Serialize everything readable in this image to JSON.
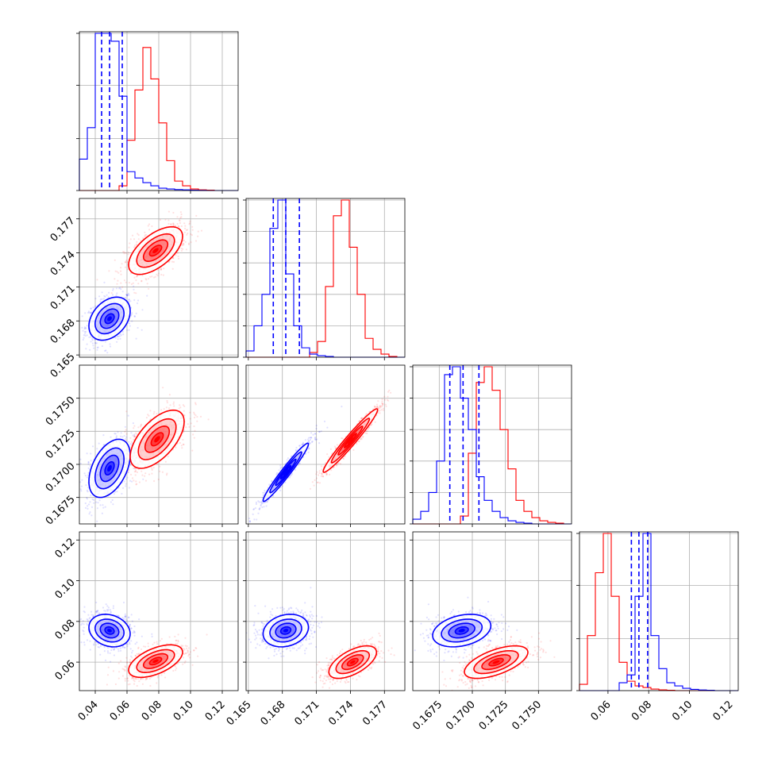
{
  "chart_data": {
    "type": "corner",
    "title": "",
    "grid": true,
    "series": [
      {
        "color": "#0000ff"
      },
      {
        "color": "#ff0000"
      }
    ],
    "parameters": [
      {
        "index": 0,
        "range": [
          0.03,
          0.13
        ],
        "ticks": [
          0.04,
          0.06,
          0.08,
          0.1,
          0.12
        ],
        "tick_labels": [
          "0.04",
          "0.06",
          "0.08",
          "0.10",
          "0.12"
        ],
        "quantiles": [
          0.044,
          0.049,
          0.057
        ],
        "hist": {
          "bin_edges": [
            0.03,
            0.035,
            0.04,
            0.045,
            0.05,
            0.055,
            0.06,
            0.065,
            0.07,
            0.075,
            0.08,
            0.085,
            0.09,
            0.095,
            0.1,
            0.105,
            0.11,
            0.115,
            0.12,
            0.125,
            0.13
          ],
          "blue": [
            0.2,
            0.4,
            1.0,
            1.0,
            0.95,
            0.6,
            0.12,
            0.08,
            0.05,
            0.03,
            0.015,
            0.01,
            0.006,
            0.004,
            0.002,
            0.001,
            0,
            0,
            0,
            0
          ],
          "red": [
            0,
            0,
            0,
            0,
            0,
            0.03,
            0.32,
            0.64,
            0.91,
            0.71,
            0.43,
            0.19,
            0.06,
            0.03,
            0.01,
            0.004,
            0.002,
            0,
            0,
            0
          ]
        },
        "unlabeled_y_ticks": [
          0.0,
          0.33,
          0.67,
          1.0
        ]
      },
      {
        "index": 1,
        "range": [
          0.1648,
          0.1788
        ],
        "ticks": [
          0.165,
          0.168,
          0.171,
          0.174,
          0.177
        ],
        "tick_labels": [
          "0.165",
          "0.168",
          "0.171",
          "0.174",
          "0.177"
        ],
        "quantiles": [
          0.1672,
          0.1683,
          0.1695
        ],
        "hist": {
          "bin_edges": [
            0.1648,
            0.1655,
            0.1662,
            0.1669,
            0.1676,
            0.1683,
            0.169,
            0.1697,
            0.1704,
            0.1711,
            0.1718,
            0.1725,
            0.1732,
            0.1739,
            0.1746,
            0.1753,
            0.176,
            0.1767,
            0.1774,
            0.1781,
            0.1788
          ],
          "blue": [
            0.04,
            0.2,
            0.4,
            0.82,
            1.0,
            0.53,
            0.2,
            0.06,
            0.02,
            0.01,
            0.005,
            0,
            0,
            0,
            0,
            0,
            0,
            0,
            0,
            0
          ],
          "red": [
            0,
            0,
            0,
            0,
            0,
            0,
            0,
            0,
            0.03,
            0.1,
            0.45,
            0.9,
            1.0,
            0.7,
            0.4,
            0.12,
            0.05,
            0.02,
            0.005,
            0
          ]
        },
        "unlabeled_y_ticks": [
          0.0,
          0.2,
          0.4,
          0.6,
          0.8,
          1.0
        ]
      },
      {
        "index": 2,
        "range": [
          0.1655,
          0.1775
        ],
        "ticks": [
          0.1675,
          0.17,
          0.1725,
          0.175
        ],
        "tick_labels": [
          "0.1675",
          "0.1700",
          "0.1725",
          "0.1750"
        ],
        "quantiles": [
          0.1683,
          0.1693,
          0.1705
        ],
        "hist": {
          "bin_edges": [
            0.1655,
            0.1661,
            0.1667,
            0.1673,
            0.1679,
            0.1685,
            0.1691,
            0.1697,
            0.1703,
            0.1709,
            0.1715,
            0.1721,
            0.1727,
            0.1733,
            0.1739,
            0.1745,
            0.1751,
            0.1757,
            0.1763,
            0.1769,
            0.1775
          ],
          "blue": [
            0.03,
            0.08,
            0.2,
            0.4,
            0.95,
            1.0,
            0.8,
            0.6,
            0.3,
            0.15,
            0.08,
            0.04,
            0.02,
            0.01,
            0.005,
            0,
            0,
            0,
            0,
            0
          ],
          "red": [
            0,
            0,
            0,
            0,
            0,
            0,
            0.05,
            0.45,
            0.9,
            1.0,
            0.85,
            0.6,
            0.35,
            0.15,
            0.08,
            0.04,
            0.02,
            0.01,
            0.005,
            0
          ]
        },
        "unlabeled_y_ticks": [
          0.0,
          0.2,
          0.4,
          0.6,
          0.8,
          1.0
        ]
      },
      {
        "index": 3,
        "range": [
          0.046,
          0.124
        ],
        "ticks": [
          0.06,
          0.08,
          0.1,
          0.12
        ],
        "tick_labels": [
          "0.06",
          "0.08",
          "0.10",
          "0.12"
        ],
        "quantiles": [
          0.0715,
          0.0752,
          0.0795
        ],
        "hist": {
          "bin_edges": [
            0.046,
            0.0499,
            0.0538,
            0.0577,
            0.0616,
            0.0655,
            0.0694,
            0.0733,
            0.0772,
            0.0811,
            0.085,
            0.0889,
            0.0928,
            0.0967,
            0.1006,
            0.1045,
            0.1084,
            0.1123,
            0.1162,
            0.1201,
            0.124
          ],
          "blue": [
            0,
            0,
            0,
            0,
            0,
            0.05,
            0.1,
            0.6,
            1.0,
            0.35,
            0.14,
            0.05,
            0.03,
            0.015,
            0.008,
            0.004,
            0.002,
            0,
            0,
            0
          ],
          "red": [
            0.04,
            0.35,
            0.75,
            1.0,
            0.6,
            0.18,
            0.06,
            0.03,
            0.02,
            0.01,
            0.005,
            0.002,
            0,
            0,
            0,
            0,
            0,
            0,
            0,
            0
          ]
        },
        "unlabeled_y_ticks": [
          0.0,
          0.33,
          0.67,
          1.0
        ]
      }
    ],
    "pairs_2d": [
      {
        "row": 1,
        "col": 0,
        "blue": {
          "mean": [
            0.049,
            0.1682
          ],
          "sd": [
            0.0065,
            0.00095
          ],
          "rho": 0.35
        },
        "red": {
          "mean": [
            0.078,
            0.1742
          ],
          "sd": [
            0.0085,
            0.00105
          ],
          "rho": 0.6
        }
      },
      {
        "row": 2,
        "col": 0,
        "blue": {
          "mean": [
            0.049,
            0.1697
          ],
          "sd": [
            0.0065,
            0.0011
          ],
          "rho": 0.45
        },
        "red": {
          "mean": [
            0.079,
            0.1719
          ],
          "sd": [
            0.0085,
            0.0011
          ],
          "rho": 0.6
        }
      },
      {
        "row": 2,
        "col": 1,
        "blue": {
          "mean": [
            0.1683,
            0.1694
          ],
          "sd": [
            0.001,
            0.0011
          ],
          "rho": 0.97
        },
        "red": {
          "mean": [
            0.174,
            0.1718
          ],
          "sd": [
            0.0012,
            0.0012
          ],
          "rho": 0.97
        }
      },
      {
        "row": 3,
        "col": 0,
        "blue": {
          "mean": [
            0.049,
            0.0755
          ],
          "sd": [
            0.0065,
            0.004
          ],
          "rho": -0.2
        },
        "red": {
          "mean": [
            0.078,
            0.0605
          ],
          "sd": [
            0.0085,
            0.004
          ],
          "rho": 0.55
        }
      },
      {
        "row": 3,
        "col": 1,
        "blue": {
          "mean": [
            0.1683,
            0.0755
          ],
          "sd": [
            0.001,
            0.004
          ],
          "rho": 0.2
        },
        "red": {
          "mean": [
            0.1742,
            0.06
          ],
          "sd": [
            0.00105,
            0.004
          ],
          "rho": 0.6
        }
      },
      {
        "row": 3,
        "col": 2,
        "blue": {
          "mean": [
            0.1692,
            0.0755
          ],
          "sd": [
            0.0011,
            0.004
          ],
          "rho": 0.3
        },
        "red": {
          "mean": [
            0.1718,
            0.06
          ],
          "sd": [
            0.0012,
            0.004
          ],
          "rho": 0.6
        }
      }
    ]
  }
}
